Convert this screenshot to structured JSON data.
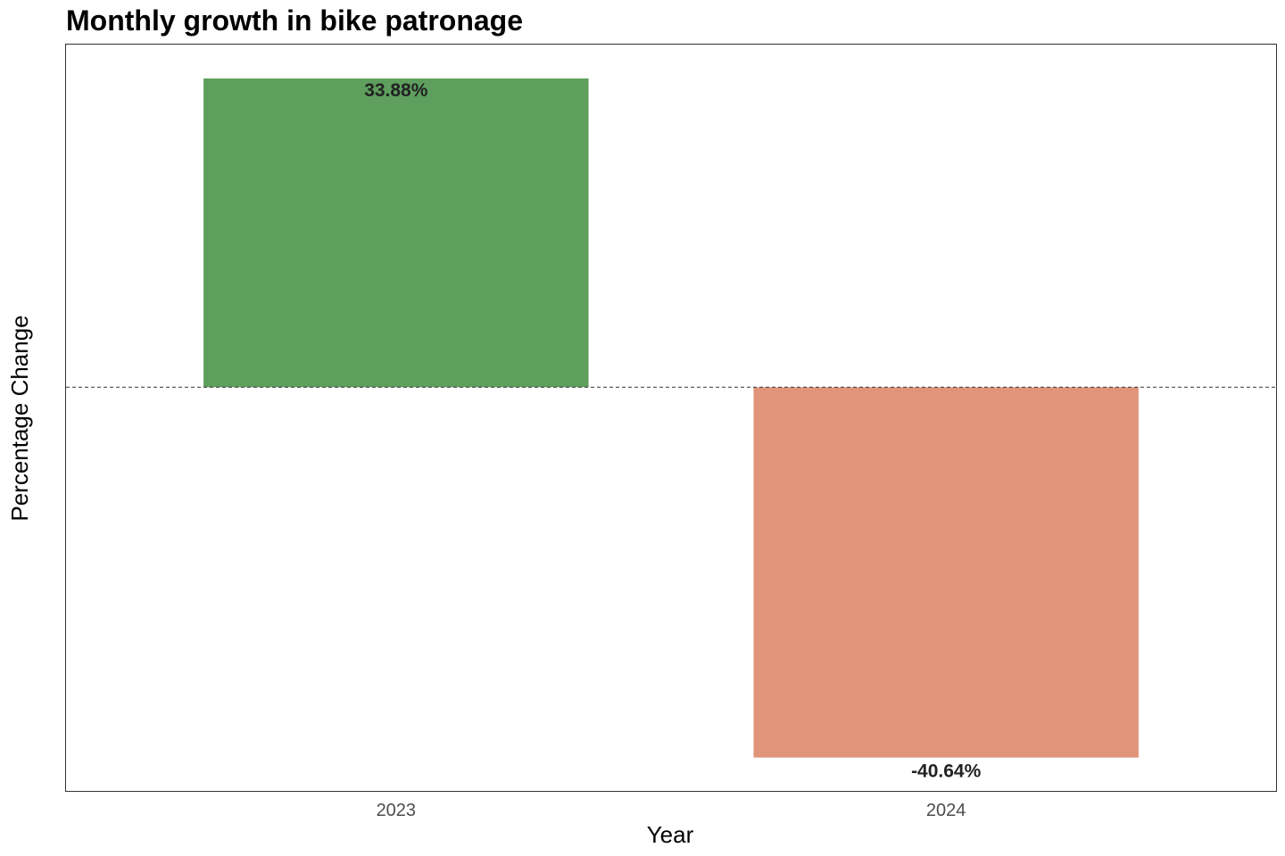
{
  "chart_data": {
    "type": "bar",
    "title": "Monthly growth in bike patronage",
    "xlabel": "Year",
    "ylabel": "Percentage Change",
    "categories": [
      "2023",
      "2024"
    ],
    "values": [
      33.88,
      -40.64
    ],
    "value_labels": [
      "33.88%",
      "-40.64%"
    ],
    "colors": [
      "#5e9f5e",
      "#e0947a"
    ],
    "ylim": [
      -44.3,
      37.6
    ],
    "reference_line": 0,
    "grid": false,
    "y_ticks_shown": false,
    "panel_border": true
  }
}
